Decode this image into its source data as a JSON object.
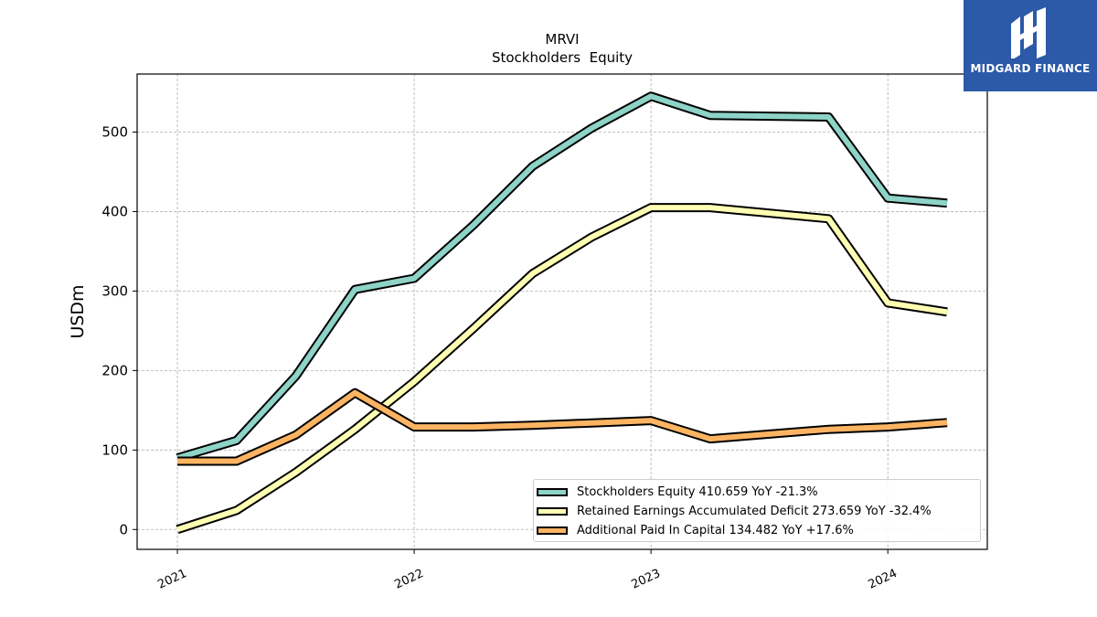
{
  "logo": {
    "text": "MIDGARD FINANCE",
    "bg_color": "#2c59a8"
  },
  "chart_data": {
    "type": "line",
    "title": "MRVI",
    "subtitle": "Stockholders  Equity",
    "xlabel": "",
    "ylabel": "USDm",
    "xlim": [
      2020.83,
      2024.42
    ],
    "ylim": [
      -25,
      573
    ],
    "x_ticks": [
      2021,
      2022,
      2023,
      2024
    ],
    "x_tick_labels": [
      "2021",
      "2022",
      "2023",
      "2024"
    ],
    "y_ticks": [
      0,
      100,
      200,
      300,
      400,
      500
    ],
    "y_tick_labels": [
      "0",
      "100",
      "200",
      "300",
      "400",
      "500"
    ],
    "grid": true,
    "legend_position": "bottom-right",
    "x": [
      2021.0,
      2021.25,
      2021.5,
      2021.75,
      2022.0,
      2022.25,
      2022.5,
      2022.75,
      2023.0,
      2023.25,
      2023.5,
      2023.75,
      2024.0,
      2024.25
    ],
    "series": [
      {
        "name": "Stockholders Equity",
        "legend_label": "Stockholders Equity  410.659 YoY -21.3%",
        "color": "#8dd3c7",
        "values": [
          90,
          112,
          193,
          302,
          316,
          383,
          457,
          505,
          545,
          521,
          520,
          519,
          417,
          410.659
        ]
      },
      {
        "name": "Retained Earnings Accumulated Deficit",
        "legend_label": "Retained Earnings Accumulated Deficit  273.659 YoY -32.4%",
        "color": "#ffffb3",
        "values": [
          0,
          24,
          72,
          126,
          186,
          253,
          322,
          368,
          405,
          405,
          398,
          391,
          285,
          273.659
        ]
      },
      {
        "name": "Additional Paid In Capital",
        "legend_label": "Additional Paid In Capital  134.482 YoY +17.6%",
        "color": "#fdb462",
        "values": [
          86,
          86,
          119,
          172,
          129,
          129,
          131,
          134,
          137,
          114,
          120,
          126,
          129,
          134.482
        ]
      }
    ]
  }
}
